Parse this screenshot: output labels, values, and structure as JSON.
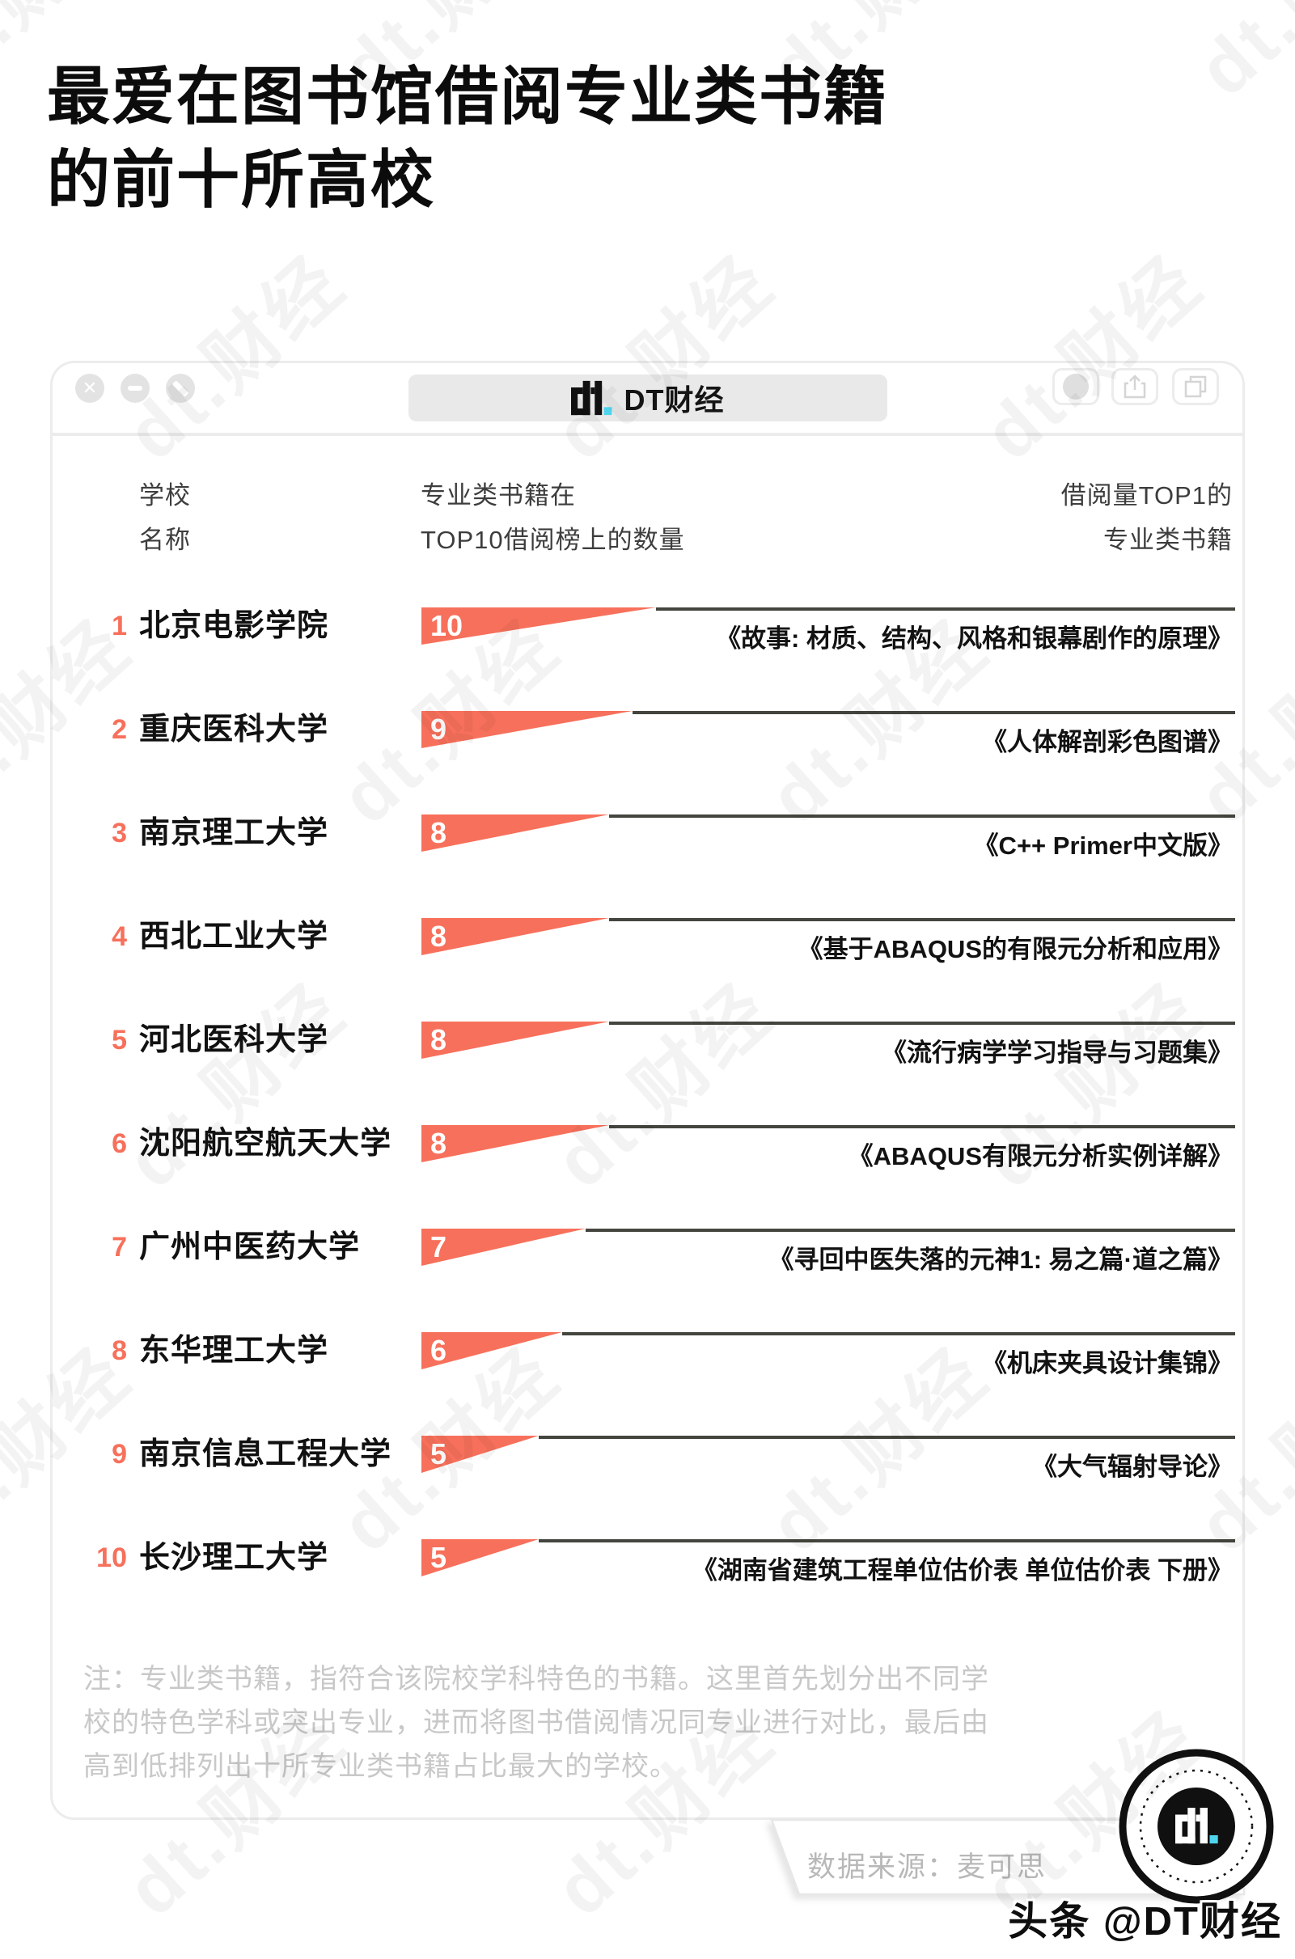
{
  "header": {
    "title_line1": "最爱在图书馆借阅专业类书籍",
    "title_line2": "的前十所高校"
  },
  "window": {
    "brand_logo": "dt.",
    "brand_name": "DT财经"
  },
  "columns": {
    "school_l1": "学校",
    "school_l2": "名称",
    "count_l1": "专业类书籍在",
    "count_l2": "TOP10借阅榜上的数量",
    "book_l1": "借阅量TOP1的",
    "book_l2": "专业类书籍"
  },
  "chart_data": {
    "type": "bar",
    "orientation": "horizontal",
    "title": "最爱在图书馆借阅专业类书籍的前十所高校",
    "xlabel": "专业类书籍在TOP10借阅榜上的数量",
    "xlim": [
      0,
      10
    ],
    "bar_color": "#F7705B",
    "categories": [
      "北京电影学院",
      "重庆医科大学",
      "南京理工大学",
      "西北工业大学",
      "河北医科大学",
      "沈阳航空航天大学",
      "广州中医药大学",
      "东华理工大学",
      "南京信息工程大学",
      "长沙理工大学"
    ],
    "values": [
      10,
      9,
      8,
      8,
      8,
      8,
      7,
      6,
      5,
      5
    ],
    "top_books": [
      "《故事: 材质、结构、风格和银幕剧作的原理》",
      "《人体解剖彩色图谱》",
      "《C++ Primer中文版》",
      "《基于ABAQUS的有限元分析和应用》",
      "《流行病学学习指导与习题集》",
      "《ABAQUS有限元分析实例详解》",
      "《寻回中医失落的元神1: 易之篇·道之篇》",
      "《机床夹具设计集锦》",
      "《大气辐射导论》",
      "《湖南省建筑工程单位估价表 单位估价表 下册》"
    ]
  },
  "note": {
    "line1": "注：专业类书籍，指符合该院校学科特色的书籍。这里首先划分出不同学",
    "line2": "校的特色学科或突出专业，进而将图书借阅情况同专业进行对比，最后由",
    "line3": "高到低排列出十所专业类书籍占比最大的学校。"
  },
  "footer": {
    "source": "数据来源：麦可思",
    "handle": "头条 @DT财经"
  },
  "watermark": {
    "text": "dt.财经"
  },
  "colors": {
    "accent": "#F7705B",
    "cyan": "#4FD4EE",
    "line": "#45453f"
  }
}
